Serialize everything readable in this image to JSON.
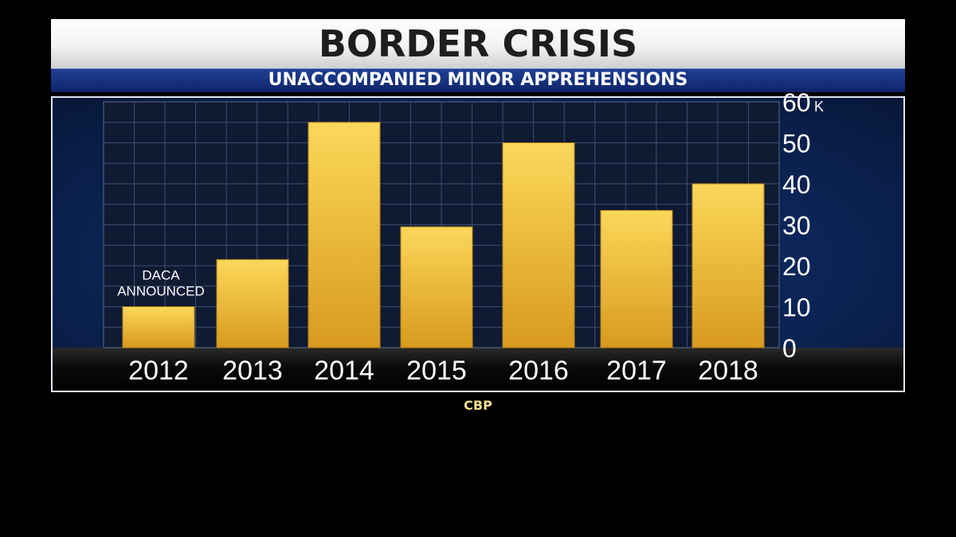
{
  "header": {
    "title": "BORDER CRISIS",
    "subtitle": "UNACCOMPANIED MINOR APPREHENSIONS"
  },
  "source": "CBP",
  "colors": {
    "bar_top": "#fbd85a",
    "bar_bottom": "#d89a1e",
    "panel": "#0c2558",
    "grid": "#3c4f70"
  },
  "chart_data": {
    "type": "bar",
    "title": "UNACCOMPANIED MINOR APPREHENSIONS",
    "categories": [
      "2012",
      "2013",
      "2014",
      "2015",
      "2016",
      "2017",
      "2018"
    ],
    "values": [
      10,
      21.5,
      55,
      29.5,
      50,
      33.5,
      40
    ],
    "ylim": [
      0,
      60
    ],
    "yticks": [
      "0",
      "10",
      "20",
      "30",
      "40",
      "50",
      "60"
    ],
    "yunit": "K",
    "y_axis_side": "right",
    "grid": true,
    "annotations": [
      {
        "category": "2012",
        "lines": [
          "DACA",
          "ANNOUNCED"
        ]
      }
    ]
  }
}
